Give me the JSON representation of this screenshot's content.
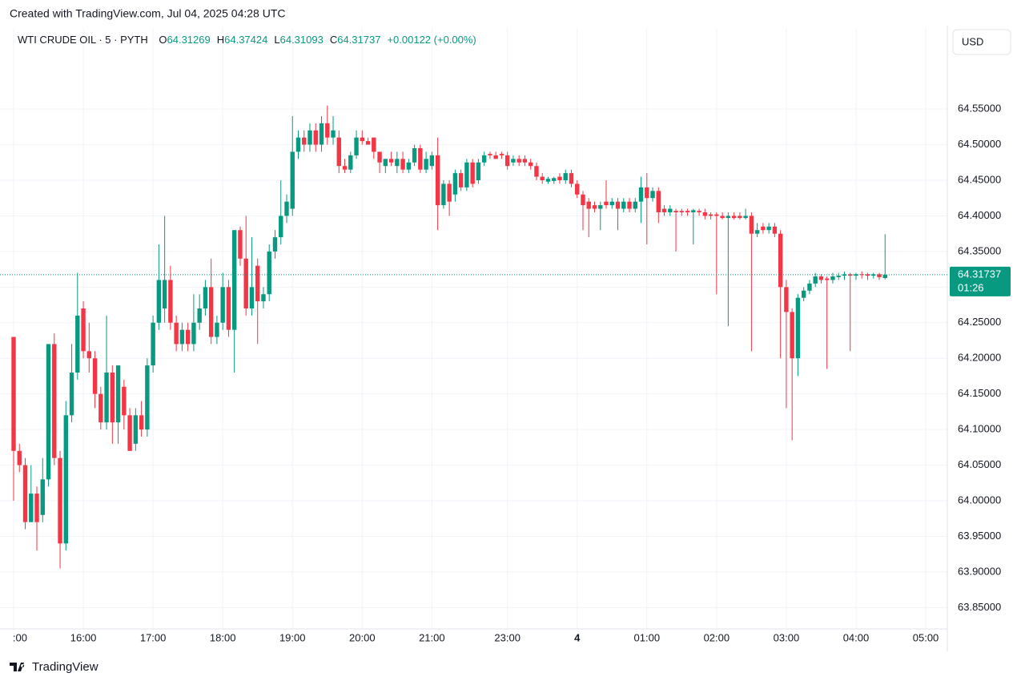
{
  "header": "Created with TradingView.com, Jul 04, 2025 04:28 UTC",
  "footer": "TradingView",
  "chart_data": {
    "type": "candlestick",
    "title": "WTI CRUDE OIL · 5 · PYTH",
    "legend": [
      {
        "label": "O",
        "value": 64.31269
      },
      {
        "label": "H",
        "value": 64.37424
      },
      {
        "label": "L",
        "value": 64.31093
      },
      {
        "label": "C",
        "value": 64.31737
      }
    ],
    "change": "+0.00122 (+0.00%)",
    "currency": "USD",
    "last_price": {
      "value": 64.31737,
      "countdown": "01:26"
    },
    "up_color": "#089981",
    "down_color": "#f23645",
    "grid": true,
    "ylim": [
      63.82,
      64.63
    ],
    "yticks": [
      {
        "value": 63.85,
        "label": "63.85000"
      },
      {
        "value": 63.9,
        "label": "63.90000"
      },
      {
        "value": 63.95,
        "label": "63.95000"
      },
      {
        "value": 64.0,
        "label": "64.00000"
      },
      {
        "value": 64.05,
        "label": "64.05000"
      },
      {
        "value": 64.1,
        "label": "64.10000"
      },
      {
        "value": 64.15,
        "label": "64.15000"
      },
      {
        "value": 64.2,
        "label": "64.20000"
      },
      {
        "value": 64.25,
        "label": "64.25000"
      },
      {
        "value": 64.3,
        "label": "64.30000"
      },
      {
        "value": 64.35,
        "label": "64.35000"
      },
      {
        "value": 64.4,
        "label": "64.40000"
      },
      {
        "value": 64.45,
        "label": "64.45000"
      },
      {
        "value": 64.5,
        "label": "64.50000"
      },
      {
        "value": 64.55,
        "label": "64.55000"
      }
    ],
    "categories": [
      ":00",
      null,
      null,
      null,
      null,
      null,
      null,
      null,
      null,
      null,
      null,
      null,
      "16:00",
      null,
      null,
      null,
      null,
      null,
      null,
      null,
      null,
      null,
      null,
      null,
      "17:00",
      null,
      null,
      null,
      null,
      null,
      null,
      null,
      null,
      null,
      null,
      null,
      "18:00",
      null,
      null,
      null,
      null,
      null,
      null,
      null,
      null,
      null,
      null,
      null,
      "19:00",
      null,
      null,
      null,
      null,
      null,
      null,
      null,
      null,
      null,
      null,
      null,
      "20:00",
      null,
      null,
      null,
      null,
      null,
      null,
      null,
      null,
      null,
      null,
      null,
      "21:00",
      null,
      null,
      null,
      null,
      null,
      null,
      null,
      null,
      null,
      null,
      null,
      null,
      "23:00",
      null,
      null,
      null,
      null,
      null,
      null,
      null,
      null,
      null,
      null,
      null,
      "4",
      null,
      null,
      null,
      null,
      null,
      null,
      null,
      null,
      null,
      null,
      null,
      "01:00",
      null,
      null,
      null,
      null,
      null,
      null,
      null,
      null,
      null,
      null,
      null,
      "02:00",
      null,
      null,
      null,
      null,
      null,
      null,
      null,
      null,
      null,
      null,
      null,
      "03:00",
      null,
      null,
      null,
      null,
      null,
      null,
      null,
      null,
      null,
      null,
      null,
      "04:00",
      null,
      null,
      null,
      null,
      null,
      null,
      null,
      null,
      null,
      null,
      null,
      "05:00"
    ],
    "candles": [
      [
        64.23,
        64.23,
        64.0,
        64.07
      ],
      [
        64.07,
        64.08,
        64.04,
        64.05
      ],
      [
        64.05,
        64.06,
        63.96,
        63.97
      ],
      [
        63.97,
        64.05,
        63.97,
        64.01
      ],
      [
        64.01,
        64.02,
        63.93,
        63.97
      ],
      [
        63.98,
        64.06,
        63.97,
        64.03
      ],
      [
        64.03,
        64.22,
        64.02,
        64.22
      ],
      [
        64.22,
        64.235,
        64.05,
        64.06
      ],
      [
        64.06,
        64.07,
        63.905,
        63.94
      ],
      [
        63.94,
        64.14,
        63.93,
        64.12
      ],
      [
        64.12,
        64.22,
        64.11,
        64.18
      ],
      [
        64.18,
        64.32,
        64.17,
        64.26
      ],
      [
        64.27,
        64.28,
        64.2,
        64.21
      ],
      [
        64.21,
        64.25,
        64.18,
        64.2
      ],
      [
        64.2,
        64.21,
        64.13,
        64.15
      ],
      [
        64.15,
        64.16,
        64.1,
        64.11
      ],
      [
        64.11,
        64.26,
        64.1,
        64.18
      ],
      [
        64.18,
        64.19,
        64.08,
        64.11
      ],
      [
        64.11,
        64.19,
        64.08,
        64.19
      ],
      [
        64.16,
        64.17,
        64.1,
        64.12
      ],
      [
        64.12,
        64.13,
        64.07,
        64.07
      ],
      [
        64.08,
        64.13,
        64.07,
        64.12
      ],
      [
        64.12,
        64.14,
        64.09,
        64.1
      ],
      [
        64.1,
        64.2,
        64.09,
        64.19
      ],
      [
        64.19,
        64.26,
        64.18,
        64.25
      ],
      [
        64.25,
        64.36,
        64.24,
        64.31
      ],
      [
        64.27,
        64.4,
        64.25,
        64.31
      ],
      [
        64.31,
        64.33,
        64.24,
        64.25
      ],
      [
        64.25,
        64.26,
        64.21,
        64.22
      ],
      [
        64.22,
        64.25,
        64.21,
        64.24
      ],
      [
        64.24,
        64.25,
        64.21,
        64.22
      ],
      [
        64.22,
        64.29,
        64.21,
        64.25
      ],
      [
        64.25,
        64.29,
        64.24,
        64.27
      ],
      [
        64.27,
        64.31,
        64.26,
        64.3
      ],
      [
        64.3,
        64.34,
        64.22,
        64.23
      ],
      [
        64.23,
        64.26,
        64.22,
        64.25
      ],
      [
        64.25,
        64.32,
        64.24,
        64.3
      ],
      [
        64.3,
        64.31,
        64.23,
        64.24
      ],
      [
        64.24,
        64.38,
        64.18,
        64.38
      ],
      [
        64.38,
        64.385,
        64.33,
        64.34
      ],
      [
        64.34,
        64.4,
        64.26,
        64.27
      ],
      [
        64.27,
        64.37,
        64.26,
        64.3
      ],
      [
        64.33,
        64.34,
        64.22,
        64.28
      ],
      [
        64.28,
        64.3,
        64.27,
        64.29
      ],
      [
        64.29,
        64.36,
        64.28,
        64.35
      ],
      [
        64.35,
        64.38,
        64.34,
        64.37
      ],
      [
        64.37,
        64.45,
        64.36,
        64.4
      ],
      [
        64.4,
        64.43,
        64.39,
        64.42
      ],
      [
        64.41,
        64.54,
        64.4,
        64.49
      ],
      [
        64.49,
        64.52,
        64.48,
        64.51
      ],
      [
        64.51,
        64.52,
        64.49,
        64.5
      ],
      [
        64.5,
        64.53,
        64.49,
        64.52
      ],
      [
        64.52,
        64.53,
        64.49,
        64.5
      ],
      [
        64.5,
        64.54,
        64.49,
        64.53
      ],
      [
        64.53,
        64.555,
        64.5,
        64.51
      ],
      [
        64.51,
        64.54,
        64.5,
        64.52
      ],
      [
        64.51,
        64.52,
        64.46,
        64.47
      ],
      [
        64.47,
        64.48,
        64.46,
        64.465
      ],
      [
        64.465,
        64.49,
        64.46,
        64.485
      ],
      [
        64.485,
        64.52,
        64.48,
        64.51
      ],
      [
        64.51,
        64.52,
        64.5,
        64.505
      ],
      [
        64.505,
        64.51,
        64.5,
        64.5
      ],
      [
        64.51,
        64.51,
        64.48,
        64.49
      ],
      [
        64.49,
        64.49,
        64.46,
        64.475
      ],
      [
        64.47,
        64.48,
        64.46,
        64.48
      ],
      [
        64.48,
        64.49,
        64.47,
        64.475
      ],
      [
        64.47,
        64.49,
        64.46,
        64.48
      ],
      [
        64.48,
        64.49,
        64.46,
        64.465
      ],
      [
        64.465,
        64.48,
        64.46,
        64.475
      ],
      [
        64.475,
        64.5,
        64.47,
        64.495
      ],
      [
        64.495,
        64.5,
        64.46,
        64.465
      ],
      [
        64.465,
        64.49,
        64.46,
        64.48
      ],
      [
        64.47,
        64.49,
        64.465,
        64.485
      ],
      [
        64.485,
        64.51,
        64.38,
        64.415
      ],
      [
        64.415,
        64.45,
        64.41,
        64.445
      ],
      [
        64.445,
        64.45,
        64.4,
        64.42
      ],
      [
        64.43,
        64.465,
        64.42,
        64.46
      ],
      [
        64.46,
        64.465,
        64.435,
        64.44
      ],
      [
        64.44,
        64.48,
        64.435,
        64.475
      ],
      [
        64.475,
        64.48,
        64.44,
        64.445
      ],
      [
        64.45,
        64.48,
        64.445,
        64.475
      ],
      [
        64.475,
        64.49,
        64.47,
        64.485
      ],
      [
        64.487,
        64.49,
        64.48,
        64.485
      ],
      [
        64.485,
        64.49,
        64.48,
        64.48
      ],
      [
        64.487,
        64.49,
        64.48,
        64.485
      ],
      [
        64.485,
        64.49,
        64.465,
        64.47
      ],
      [
        64.475,
        64.485,
        64.47,
        64.48
      ],
      [
        64.48,
        64.485,
        64.47,
        64.475
      ],
      [
        64.48,
        64.485,
        64.47,
        64.475
      ],
      [
        64.475,
        64.48,
        64.465,
        64.47
      ],
      [
        64.47,
        64.475,
        64.45,
        64.455
      ],
      [
        64.455,
        64.46,
        64.445,
        64.45
      ],
      [
        64.448,
        64.455,
        64.445,
        64.452
      ],
      [
        64.449,
        64.455,
        64.445,
        64.453
      ],
      [
        64.455,
        64.46,
        64.445,
        64.45
      ],
      [
        64.45,
        64.465,
        64.445,
        64.46
      ],
      [
        64.46,
        64.465,
        64.44,
        64.445
      ],
      [
        64.445,
        64.45,
        64.425,
        64.43
      ],
      [
        64.43,
        64.435,
        64.38,
        64.415
      ],
      [
        64.42,
        64.425,
        64.37,
        64.41
      ],
      [
        64.415,
        64.42,
        64.405,
        64.41
      ],
      [
        64.41,
        64.42,
        64.38,
        64.415
      ],
      [
        64.42,
        64.45,
        64.41,
        64.415
      ],
      [
        64.415,
        64.425,
        64.41,
        64.42
      ],
      [
        64.42,
        64.425,
        64.38,
        64.41
      ],
      [
        64.41,
        64.425,
        64.405,
        64.42
      ],
      [
        64.42,
        64.425,
        64.405,
        64.41
      ],
      [
        64.41,
        64.425,
        64.405,
        64.42
      ],
      [
        64.42,
        64.455,
        64.39,
        64.44
      ],
      [
        64.44,
        64.46,
        64.36,
        64.425
      ],
      [
        64.425,
        64.44,
        64.42,
        64.435
      ],
      [
        64.435,
        64.44,
        64.39,
        64.405
      ],
      [
        64.41,
        64.415,
        64.4,
        64.405
      ],
      [
        64.405,
        64.415,
        64.4,
        64.41
      ],
      [
        64.407,
        64.41,
        64.35,
        64.405
      ],
      [
        64.407,
        64.41,
        64.4,
        64.405
      ],
      [
        64.407,
        64.41,
        64.4,
        64.405
      ],
      [
        64.405,
        64.41,
        64.36,
        64.408
      ],
      [
        64.407,
        64.41,
        64.4,
        64.405
      ],
      [
        64.405,
        64.41,
        64.395,
        64.4
      ],
      [
        64.402,
        64.405,
        64.395,
        64.4
      ],
      [
        64.402,
        64.405,
        64.29,
        64.4
      ],
      [
        64.4,
        64.405,
        64.395,
        64.397
      ],
      [
        64.397,
        64.405,
        64.245,
        64.4
      ],
      [
        64.4,
        64.405,
        64.395,
        64.397
      ],
      [
        64.4,
        64.405,
        64.395,
        64.397
      ],
      [
        64.397,
        64.41,
        64.395,
        64.4
      ],
      [
        64.4,
        64.405,
        64.21,
        64.375
      ],
      [
        64.375,
        64.39,
        64.37,
        64.38
      ],
      [
        64.385,
        64.39,
        64.375,
        64.38
      ],
      [
        64.38,
        64.39,
        64.375,
        64.385
      ],
      [
        64.385,
        64.39,
        64.37,
        64.375
      ],
      [
        64.375,
        64.38,
        64.2,
        64.3
      ],
      [
        64.3,
        64.31,
        64.13,
        64.265
      ],
      [
        64.265,
        64.27,
        64.085,
        64.2
      ],
      [
        64.2,
        64.29,
        64.175,
        64.285
      ],
      [
        64.285,
        64.3,
        64.28,
        64.295
      ],
      [
        64.295,
        64.31,
        64.29,
        64.305
      ],
      [
        64.305,
        64.32,
        64.3,
        64.315
      ],
      [
        64.315,
        64.318,
        64.305,
        64.31
      ],
      [
        64.312,
        64.315,
        64.185,
        64.31
      ],
      [
        64.31,
        64.32,
        64.305,
        64.315
      ],
      [
        64.314,
        64.32,
        64.31,
        64.316
      ],
      [
        64.316,
        64.322,
        64.31,
        64.318
      ],
      [
        64.318,
        64.32,
        64.21,
        64.316
      ],
      [
        64.316,
        64.32,
        64.31,
        64.318
      ],
      [
        64.318,
        64.322,
        64.312,
        64.317
      ],
      [
        64.318,
        64.32,
        64.31,
        64.316
      ],
      [
        64.316,
        64.32,
        64.312,
        64.318
      ],
      [
        64.318,
        64.32,
        64.31,
        64.314
      ],
      [
        64.31269,
        64.37424,
        64.31093,
        64.31737
      ],
      null,
      null,
      null,
      null,
      null,
      null,
      null
    ]
  }
}
